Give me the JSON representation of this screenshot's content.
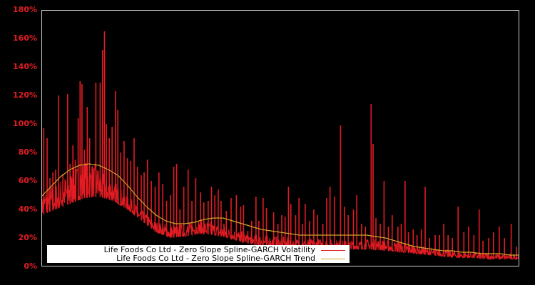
{
  "chart_data": {
    "type": "line",
    "title": "",
    "xlabel": "",
    "ylabel": "",
    "ylim": [
      0,
      180
    ],
    "y_tick_labels": [
      "0%",
      "20%",
      "40%",
      "60%",
      "80%",
      "100%",
      "120%",
      "140%",
      "160%",
      "180%"
    ],
    "y_tick_values": [
      0,
      20,
      40,
      60,
      80,
      100,
      120,
      140,
      160,
      180
    ],
    "x_tick_labels": [],
    "grid": false,
    "legend_position": "lower left",
    "background": "#000000",
    "frame_color": "#cccccc",
    "x_range": [
      0,
      100
    ],
    "series": [
      {
        "name": "Life Foods Co Ltd - Zero Slope Spline-GARCH Volatility",
        "color": "#e31c23",
        "baseline_x": [
          0,
          3,
          6,
          9,
          12,
          15,
          18,
          21,
          24,
          27,
          30,
          33,
          36,
          39,
          42,
          45,
          48,
          51,
          54,
          57,
          60,
          63,
          66,
          69,
          72,
          75,
          78,
          81,
          84,
          87,
          90,
          93,
          96,
          100
        ],
        "baseline_low": [
          36,
          40,
          44,
          48,
          49,
          46,
          40,
          32,
          24,
          20,
          21,
          23,
          22,
          20,
          17,
          15,
          14,
          13,
          13,
          13,
          12,
          12,
          12,
          12,
          11,
          10,
          9,
          8,
          7,
          6,
          6,
          5,
          5,
          5
        ],
        "baseline_high": [
          50,
          55,
          62,
          70,
          66,
          58,
          48,
          38,
          30,
          27,
          28,
          31,
          29,
          26,
          23,
          21,
          20,
          19,
          18,
          18,
          18,
          17,
          17,
          18,
          17,
          16,
          14,
          12,
          11,
          10,
          9,
          9,
          8,
          8
        ],
        "spikes": [
          {
            "x": 0.5,
            "y": 97
          },
          {
            "x": 1.2,
            "y": 90
          },
          {
            "x": 1.8,
            "y": 62
          },
          {
            "x": 2.4,
            "y": 66
          },
          {
            "x": 3.0,
            "y": 68
          },
          {
            "x": 3.6,
            "y": 120
          },
          {
            "x": 4.5,
            "y": 65
          },
          {
            "x": 5.5,
            "y": 121
          },
          {
            "x": 6.0,
            "y": 72
          },
          {
            "x": 6.6,
            "y": 85
          },
          {
            "x": 7.1,
            "y": 75
          },
          {
            "x": 7.7,
            "y": 104
          },
          {
            "x": 8.1,
            "y": 130
          },
          {
            "x": 8.5,
            "y": 128
          },
          {
            "x": 9.0,
            "y": 82
          },
          {
            "x": 9.6,
            "y": 112
          },
          {
            "x": 10.1,
            "y": 90
          },
          {
            "x": 10.6,
            "y": 70
          },
          {
            "x": 11.4,
            "y": 129
          },
          {
            "x": 12.3,
            "y": 129
          },
          {
            "x": 12.8,
            "y": 152
          },
          {
            "x": 13.2,
            "y": 165
          },
          {
            "x": 13.6,
            "y": 100
          },
          {
            "x": 14.2,
            "y": 90
          },
          {
            "x": 14.8,
            "y": 98
          },
          {
            "x": 15.5,
            "y": 123
          },
          {
            "x": 16.0,
            "y": 110
          },
          {
            "x": 16.6,
            "y": 80
          },
          {
            "x": 17.3,
            "y": 88
          },
          {
            "x": 18.0,
            "y": 76
          },
          {
            "x": 18.7,
            "y": 74
          },
          {
            "x": 19.4,
            "y": 90
          },
          {
            "x": 20.1,
            "y": 70
          },
          {
            "x": 20.9,
            "y": 64
          },
          {
            "x": 21.5,
            "y": 66
          },
          {
            "x": 22.2,
            "y": 75
          },
          {
            "x": 23.0,
            "y": 60
          },
          {
            "x": 23.8,
            "y": 56
          },
          {
            "x": 24.6,
            "y": 66
          },
          {
            "x": 25.4,
            "y": 58
          },
          {
            "x": 26.2,
            "y": 46
          },
          {
            "x": 27.0,
            "y": 50
          },
          {
            "x": 27.7,
            "y": 70
          },
          {
            "x": 28.3,
            "y": 72
          },
          {
            "x": 29.0,
            "y": 40
          },
          {
            "x": 29.8,
            "y": 56
          },
          {
            "x": 30.7,
            "y": 68
          },
          {
            "x": 31.5,
            "y": 46
          },
          {
            "x": 32.3,
            "y": 62
          },
          {
            "x": 33.3,
            "y": 52
          },
          {
            "x": 34.0,
            "y": 45
          },
          {
            "x": 34.9,
            "y": 46
          },
          {
            "x": 35.6,
            "y": 56
          },
          {
            "x": 36.3,
            "y": 50
          },
          {
            "x": 37.0,
            "y": 54
          },
          {
            "x": 37.6,
            "y": 46
          },
          {
            "x": 38.2,
            "y": 30
          },
          {
            "x": 38.7,
            "y": 39
          },
          {
            "x": 39.7,
            "y": 48
          },
          {
            "x": 40.8,
            "y": 50
          },
          {
            "x": 41.7,
            "y": 42
          },
          {
            "x": 42.3,
            "y": 43
          },
          {
            "x": 43.2,
            "y": 25
          },
          {
            "x": 44.0,
            "y": 32
          },
          {
            "x": 44.9,
            "y": 49
          },
          {
            "x": 45.5,
            "y": 32
          },
          {
            "x": 46.4,
            "y": 48
          },
          {
            "x": 47.1,
            "y": 41
          },
          {
            "x": 48.6,
            "y": 38
          },
          {
            "x": 49.5,
            "y": 30
          },
          {
            "x": 50.3,
            "y": 36
          },
          {
            "x": 51.0,
            "y": 35
          },
          {
            "x": 51.7,
            "y": 56
          },
          {
            "x": 52.2,
            "y": 44
          },
          {
            "x": 53.2,
            "y": 36
          },
          {
            "x": 53.9,
            "y": 48
          },
          {
            "x": 54.6,
            "y": 30
          },
          {
            "x": 55.2,
            "y": 44
          },
          {
            "x": 56.1,
            "y": 32
          },
          {
            "x": 57.0,
            "y": 40
          },
          {
            "x": 57.8,
            "y": 36
          },
          {
            "x": 58.9,
            "y": 30
          },
          {
            "x": 59.7,
            "y": 48
          },
          {
            "x": 60.4,
            "y": 56
          },
          {
            "x": 61.3,
            "y": 49
          },
          {
            "x": 62.6,
            "y": 99
          },
          {
            "x": 63.4,
            "y": 42
          },
          {
            "x": 64.2,
            "y": 36
          },
          {
            "x": 65.3,
            "y": 40
          },
          {
            "x": 66.0,
            "y": 50
          },
          {
            "x": 67.0,
            "y": 30
          },
          {
            "x": 67.8,
            "y": 28
          },
          {
            "x": 69.0,
            "y": 114
          },
          {
            "x": 69.4,
            "y": 86
          },
          {
            "x": 70.0,
            "y": 34
          },
          {
            "x": 70.9,
            "y": 30
          },
          {
            "x": 71.7,
            "y": 60
          },
          {
            "x": 72.6,
            "y": 28
          },
          {
            "x": 73.4,
            "y": 36
          },
          {
            "x": 74.6,
            "y": 28
          },
          {
            "x": 75.3,
            "y": 30
          },
          {
            "x": 76.1,
            "y": 60
          },
          {
            "x": 76.8,
            "y": 24
          },
          {
            "x": 77.8,
            "y": 26
          },
          {
            "x": 78.6,
            "y": 22
          },
          {
            "x": 79.5,
            "y": 26
          },
          {
            "x": 80.3,
            "y": 56
          },
          {
            "x": 81.2,
            "y": 20
          },
          {
            "x": 82.4,
            "y": 22
          },
          {
            "x": 83.3,
            "y": 22
          },
          {
            "x": 84.2,
            "y": 30
          },
          {
            "x": 85.1,
            "y": 22
          },
          {
            "x": 86.0,
            "y": 20
          },
          {
            "x": 87.2,
            "y": 42
          },
          {
            "x": 88.4,
            "y": 24
          },
          {
            "x": 89.4,
            "y": 28
          },
          {
            "x": 90.5,
            "y": 22
          },
          {
            "x": 91.6,
            "y": 40
          },
          {
            "x": 92.4,
            "y": 18
          },
          {
            "x": 93.6,
            "y": 20
          },
          {
            "x": 94.6,
            "y": 24
          },
          {
            "x": 95.8,
            "y": 28
          },
          {
            "x": 96.9,
            "y": 20
          },
          {
            "x": 98.3,
            "y": 30
          },
          {
            "x": 99.4,
            "y": 14
          }
        ]
      },
      {
        "name": "Life Foods Co Ltd - Zero Slope Spline-GARCH Trend",
        "color": "#d4a52a",
        "x": [
          0,
          2,
          4,
          6,
          8,
          10,
          12,
          14,
          16,
          18,
          20,
          22,
          24,
          26,
          28,
          30,
          32,
          34,
          36,
          38,
          40,
          42,
          44,
          46,
          48,
          50,
          52,
          54,
          56,
          58,
          60,
          62,
          64,
          66,
          68,
          70,
          72,
          74,
          76,
          78,
          80,
          82,
          84,
          86,
          88,
          90,
          92,
          94,
          96,
          98,
          100
        ],
        "values": [
          49,
          56,
          63,
          68,
          71,
          72,
          71,
          68,
          64,
          57,
          49,
          42,
          36,
          32,
          30,
          30,
          31,
          33,
          34,
          34,
          32,
          30,
          28,
          26,
          25,
          24,
          23,
          22,
          22,
          22,
          22,
          22,
          22,
          22,
          22,
          21,
          20,
          18,
          16,
          14,
          13,
          12,
          11,
          11,
          10,
          10,
          9,
          9,
          9,
          8,
          8
        ]
      }
    ]
  },
  "legend": {
    "items": [
      {
        "label": "Life Foods Co Ltd - Zero Slope Spline-GARCH Volatility",
        "color": "#e31c23"
      },
      {
        "label": "Life Foods Co Ltd - Zero Slope Spline-GARCH Trend",
        "color": "#d4a52a"
      }
    ]
  }
}
